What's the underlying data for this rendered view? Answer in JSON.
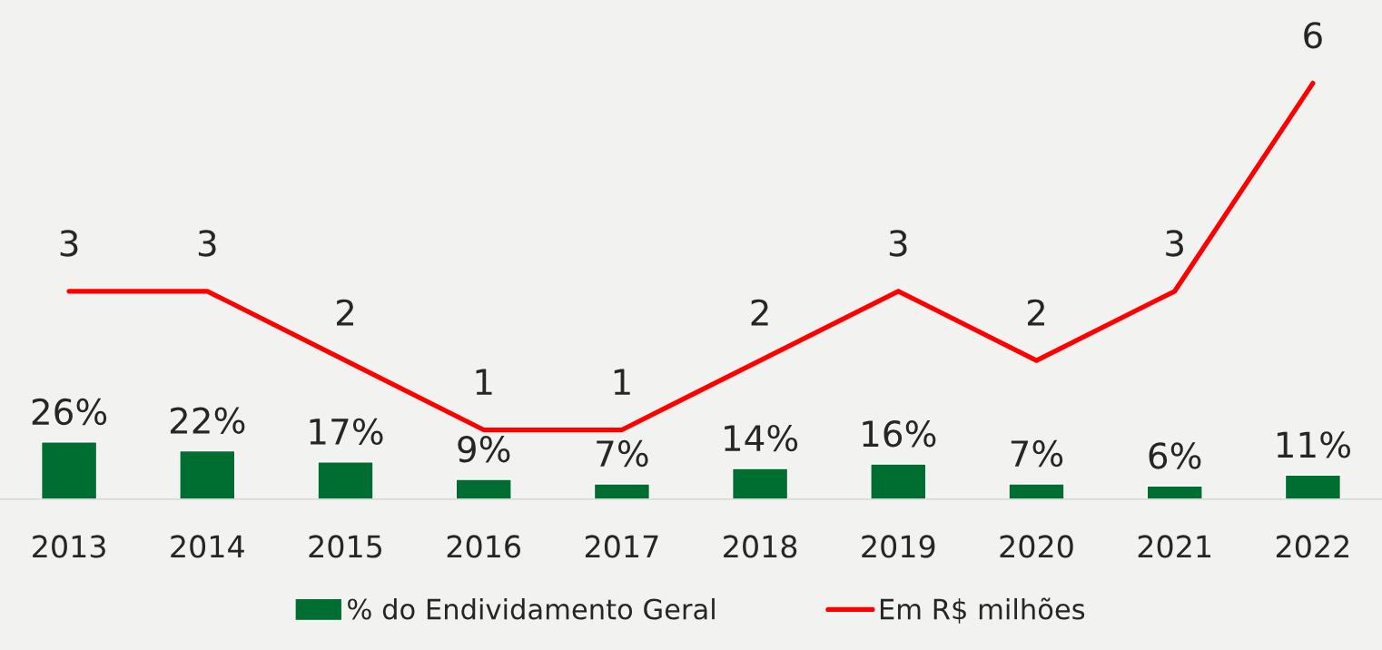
{
  "chart_data": {
    "type": "bar",
    "categories": [
      "2013",
      "2014",
      "2015",
      "2016",
      "2017",
      "2018",
      "2019",
      "2020",
      "2021",
      "2022"
    ],
    "series": [
      {
        "name": "% do Endividamento Geral",
        "color": "#006e31",
        "values": [
          26,
          22,
          17,
          9,
          7,
          14,
          16,
          7,
          6,
          11
        ],
        "value_labels": [
          "26%",
          "22%",
          "17%",
          "9%",
          "7%",
          "14%",
          "16%",
          "7%",
          "6%",
          "11%"
        ]
      },
      {
        "name": "Em R$ milhões",
        "type": "line",
        "axis": "y2",
        "color": "#ff0000",
        "values": [
          3,
          3,
          2,
          1,
          1,
          2,
          3,
          2,
          3,
          6
        ],
        "value_labels": [
          "3",
          "3",
          "2",
          "1",
          "1",
          "2",
          "3",
          "2",
          "3",
          "6"
        ]
      }
    ],
    "ylim": [
      0,
      227
    ],
    "y2lim": [
      0,
      7.2
    ],
    "tick_labels": "x",
    "grid": false,
    "legend": "bottom",
    "marker": "none",
    "line_style": "solid"
  }
}
